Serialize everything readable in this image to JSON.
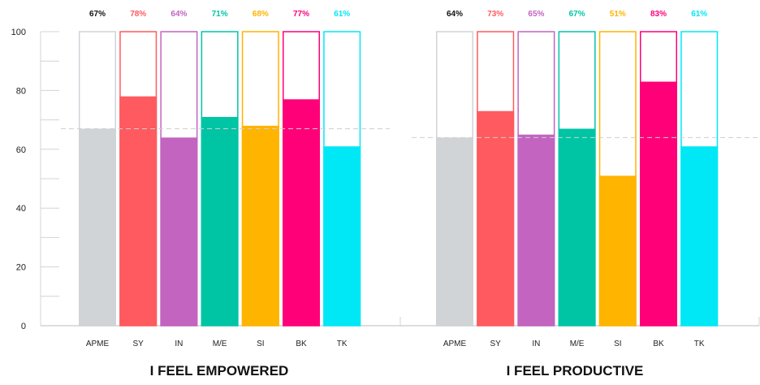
{
  "chart_data": [
    {
      "type": "bar",
      "title": "I FEEL EMPOWERED",
      "categories": [
        "APME",
        "SY",
        "IN",
        "M/E",
        "SI",
        "BK",
        "TK"
      ],
      "values": [
        67,
        78,
        64,
        71,
        68,
        77,
        61
      ],
      "value_labels": [
        "67%",
        "78%",
        "64%",
        "71%",
        "68%",
        "77%",
        "61%"
      ],
      "reference_line": 67,
      "ylim": [
        0,
        100
      ],
      "yticks": [
        0,
        20,
        40,
        60,
        80,
        100
      ],
      "ytick_labels": [
        "0",
        "20",
        "40",
        "60",
        "80",
        "100"
      ]
    },
    {
      "type": "bar",
      "title": "I FEEL PRODUCTIVE",
      "categories": [
        "APME",
        "SY",
        "IN",
        "M/E",
        "SI",
        "BK",
        "TK"
      ],
      "values": [
        64,
        73,
        65,
        67,
        51,
        83,
        61
      ],
      "value_labels": [
        "64%",
        "73%",
        "65%",
        "67%",
        "51%",
        "83%",
        "61%"
      ],
      "reference_line": 64,
      "ylim": [
        0,
        100
      ]
    }
  ],
  "colors": [
    "#d0d4d7",
    "#ff5a5f",
    "#c264c0",
    "#00c5a5",
    "#ffb400",
    "#ff0078",
    "#00e8f5"
  ],
  "label_colors": [
    "#111111",
    "#ff5a5f",
    "#c264c0",
    "#00c5a5",
    "#ffb400",
    "#ff0078",
    "#00e8f5"
  ],
  "axis_color": "#d0d4d7"
}
